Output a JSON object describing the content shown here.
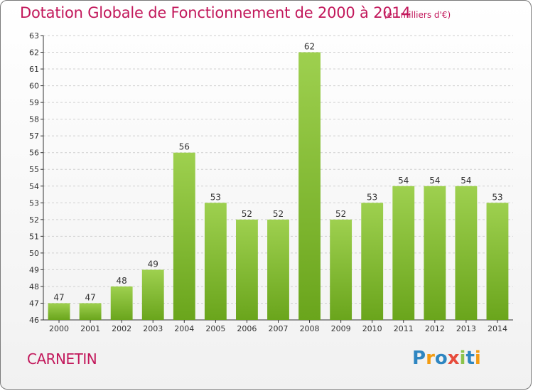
{
  "title": "Dotation Globale de Fonctionnement de 2000 à 2014",
  "subtitle": "(en milliers d'€)",
  "commune": "CARNETIN",
  "logo": {
    "text": "Proxiti",
    "letters": [
      {
        "ch": "P",
        "color": "#2e86c1"
      },
      {
        "ch": "r",
        "color": "#f39c12"
      },
      {
        "ch": "o",
        "color": "#2e86c1"
      },
      {
        "ch": "x",
        "color": "#e74c3c"
      },
      {
        "ch": "i",
        "color": "#8bc34a"
      },
      {
        "ch": "t",
        "color": "#2e86c1"
      },
      {
        "ch": "i",
        "color": "#f39c12"
      }
    ]
  },
  "colors": {
    "bar_top": "#9ed04f",
    "bar_bottom": "#6aa51c",
    "title": "#c2185b",
    "grid": "#cfcfcf"
  },
  "chart_data": {
    "type": "bar",
    "categories": [
      "2000",
      "2001",
      "2002",
      "2003",
      "2004",
      "2005",
      "2006",
      "2007",
      "2008",
      "2009",
      "2010",
      "2011",
      "2012",
      "2013",
      "2014"
    ],
    "values": [
      47,
      47,
      48,
      49,
      56,
      53,
      52,
      52,
      62,
      52,
      53,
      54,
      54,
      54,
      53
    ],
    "data_labels": [
      "47",
      "47",
      "48",
      "49",
      "56",
      "53",
      "52",
      "52",
      "62",
      "52",
      "53",
      "54",
      "54",
      "54",
      "53"
    ],
    "ylim": [
      46,
      63
    ],
    "yticks": [
      46,
      47,
      48,
      49,
      50,
      51,
      52,
      53,
      54,
      55,
      56,
      57,
      58,
      59,
      60,
      61,
      62,
      63
    ],
    "grid": true,
    "xlabel": "",
    "ylabel": ""
  }
}
